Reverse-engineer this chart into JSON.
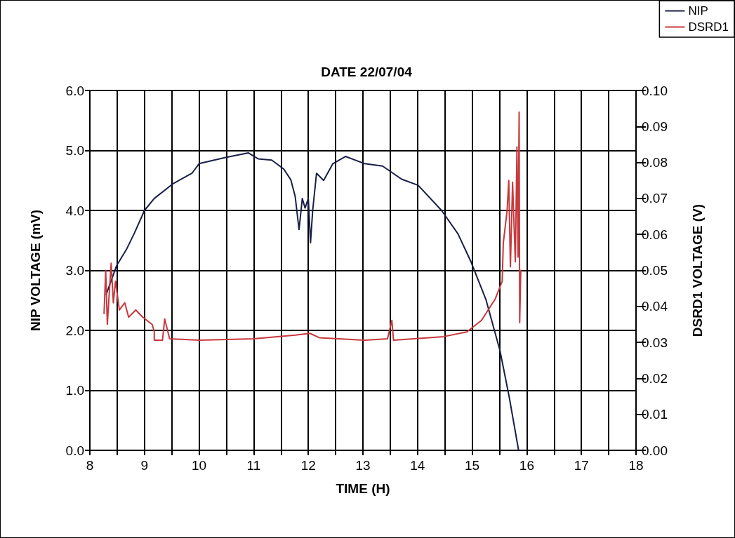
{
  "chart_data": {
    "type": "line",
    "title": "DATE 22/07/04",
    "xlabel": "TIME (H)",
    "ylabel": "NIP VOLTAGE (mV)",
    "y2label": "DSRD1 VOLTAGE (V)",
    "xlim": [
      8,
      18
    ],
    "xticks": [
      8,
      {
        "value": 8.5,
        "label": null
      },
      9,
      {
        "value": 9.5,
        "label": null
      },
      10,
      {
        "value": 10.5,
        "label": null
      },
      11,
      {
        "value": 11.5,
        "label": null
      },
      12,
      {
        "value": 12.5,
        "label": null
      },
      13,
      {
        "value": 13.5,
        "label": null
      },
      14,
      {
        "value": 14.5,
        "label": null
      },
      15,
      {
        "value": 15.5,
        "label": null
      },
      16,
      {
        "value": 16.5,
        "label": null
      },
      17,
      {
        "value": 17.5,
        "label": null
      },
      18
    ],
    "ylim": [
      0,
      6
    ],
    "yticks": [
      {
        "value": 0,
        "label": "0.0"
      },
      {
        "value": 1,
        "label": "1.0"
      },
      {
        "value": 2,
        "label": "2.0"
      },
      {
        "value": 3,
        "label": "3.0"
      },
      {
        "value": 4,
        "label": "4.0"
      },
      {
        "value": 5,
        "label": "5.0"
      },
      {
        "value": 6,
        "label": "6.0"
      }
    ],
    "y2lim": [
      0,
      0.1
    ],
    "y2ticks": [
      {
        "value": 0,
        "label": "0.00"
      },
      0.01,
      0.02,
      0.03,
      0.04,
      0.05,
      0.06,
      0.07,
      0.08,
      0.09,
      {
        "value": 0.1,
        "label": "0.10"
      }
    ],
    "grid": true,
    "legend": "top right",
    "marker": "none",
    "line_style": "solid",
    "series": [
      {
        "name": "NIP",
        "color": "#1a1f4a",
        "x": [
          8.3,
          8.49,
          8.67,
          8.82,
          9.0,
          9.18,
          9.53,
          9.87,
          10.0,
          10.47,
          10.9,
          11.08,
          11.33,
          11.55,
          11.68,
          11.76,
          11.83,
          11.89,
          11.94,
          12.0,
          12.04,
          12.08,
          12.15,
          12.28,
          12.45,
          12.68,
          13.03,
          13.36,
          13.71,
          14.01,
          14.44,
          14.74,
          14.98,
          15.25,
          15.51,
          15.68,
          15.85
        ],
        "values": [
          2.6,
          3.08,
          3.35,
          3.63,
          4.0,
          4.2,
          4.45,
          4.62,
          4.78,
          4.88,
          4.96,
          4.86,
          4.84,
          4.69,
          4.51,
          4.23,
          3.68,
          4.2,
          4.04,
          4.2,
          3.46,
          4.0,
          4.62,
          4.5,
          4.78,
          4.9,
          4.78,
          4.74,
          4.52,
          4.42,
          4.0,
          3.61,
          3.14,
          2.52,
          1.66,
          0.88,
          0.0
        ]
      },
      {
        "name": "DSRD1",
        "color": "#c8383c",
        "axis": "y2",
        "x": [
          8.26,
          8.29,
          8.32,
          8.39,
          8.43,
          8.47,
          8.54,
          8.64,
          8.71,
          8.84,
          8.97,
          9.14,
          9.18,
          9.18,
          9.33,
          9.37,
          9.42,
          9.46,
          10.0,
          11.0,
          11.76,
          12.03,
          12.2,
          13.03,
          13.45,
          13.53,
          13.56,
          14.48,
          14.9,
          15.17,
          15.42,
          15.55,
          15.57,
          15.64,
          15.67,
          15.7,
          15.74,
          15.79,
          15.82,
          15.84,
          15.86,
          15.87,
          15.89
        ],
        "values": [
          0.038,
          0.05,
          0.035,
          0.052,
          0.041,
          0.047,
          0.039,
          0.041,
          0.037,
          0.039,
          0.037,
          0.035,
          0.033,
          0.0306,
          0.0306,
          0.0365,
          0.0335,
          0.031,
          0.0306,
          0.031,
          0.032,
          0.0325,
          0.0313,
          0.0306,
          0.031,
          0.0361,
          0.0306,
          0.0316,
          0.0329,
          0.0361,
          0.042,
          0.047,
          0.0576,
          0.0667,
          0.075,
          0.051,
          0.0745,
          0.0524,
          0.0843,
          0.0537,
          0.094,
          0.0355,
          0.05
        ]
      }
    ]
  }
}
